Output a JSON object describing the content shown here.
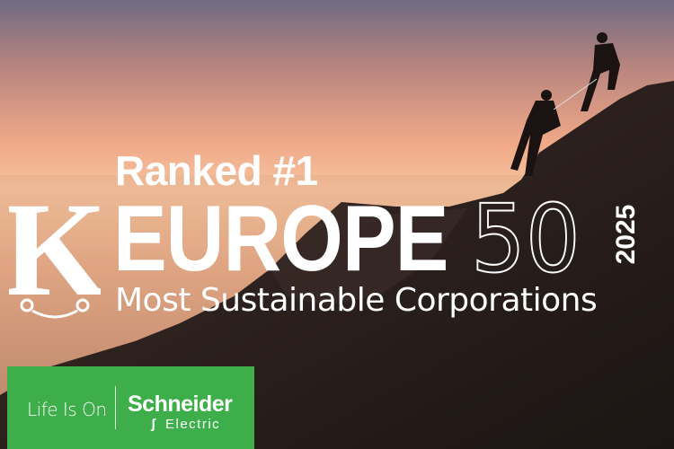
{
  "headline": {
    "ranked": "Ranked #1",
    "europe": "EUROPE",
    "fifty": "50",
    "year": "2025",
    "subtitle": "Most Sustainable Corporations"
  },
  "logo": {
    "letter": "K"
  },
  "brand": {
    "tagline": "Life Is On",
    "name": "Schneider",
    "sub": "Electric",
    "color": "#3dae49"
  },
  "colors": {
    "sky_top": "#6e6a80",
    "sky_glow": "#f3b089",
    "clouds": "#d9a27e",
    "mountain": "#2a1f1c"
  }
}
